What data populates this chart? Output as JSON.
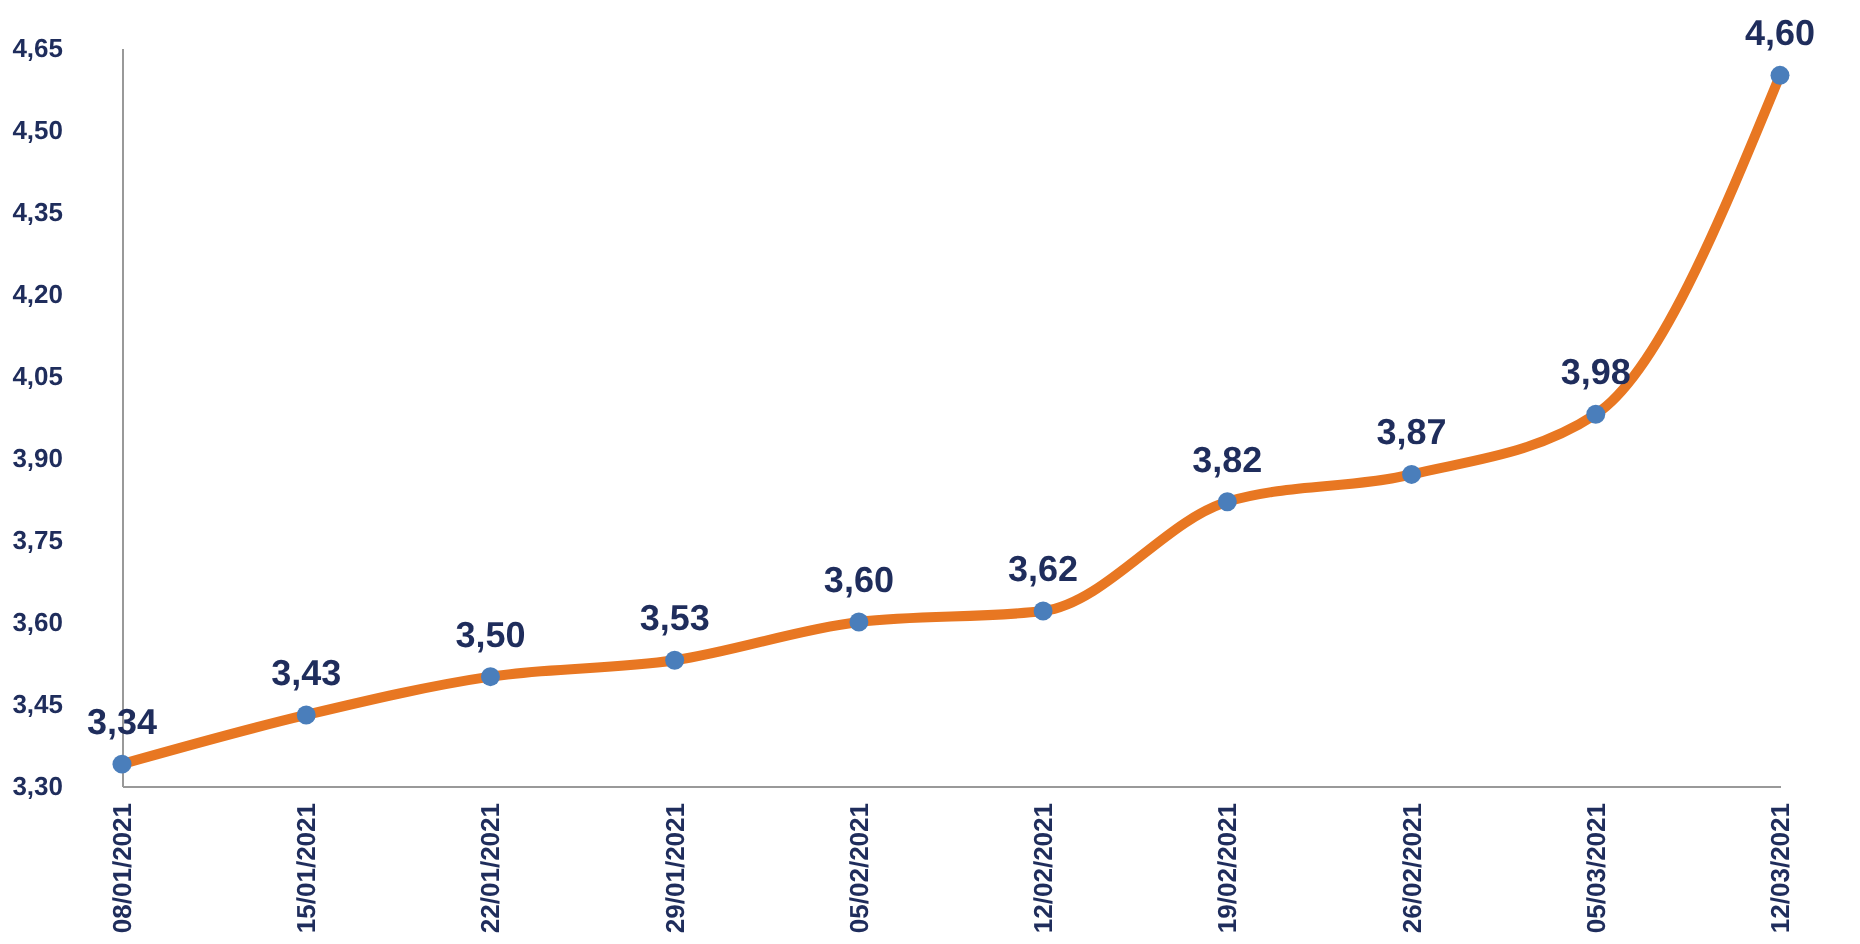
{
  "chart_data": {
    "type": "line",
    "categories": [
      "08/01/2021",
      "15/01/2021",
      "22/01/2021",
      "29/01/2021",
      "05/02/2021",
      "12/02/2021",
      "19/02/2021",
      "26/02/2021",
      "05/03/2021",
      "12/03/2021"
    ],
    "series": [
      {
        "color": "#e87722",
        "values": [
          3.34,
          3.43,
          3.5,
          3.53,
          3.6,
          3.62,
          3.82,
          3.87,
          3.98,
          4.6
        ],
        "value_labels": [
          "3,34",
          "3,43",
          "3,50",
          "3,53",
          "3,60",
          "3,62",
          "3,82",
          "3,87",
          "3,98",
          "4,60"
        ]
      }
    ],
    "ylim": [
      3.3,
      4.65
    ],
    "yticks": [
      {
        "value": 3.3,
        "label": "3,30"
      },
      {
        "value": 3.45,
        "label": "3,45"
      },
      {
        "value": 3.6,
        "label": "3,60"
      },
      {
        "value": 3.75,
        "label": "3,75"
      },
      {
        "value": 3.9,
        "label": "3,90"
      },
      {
        "value": 4.05,
        "label": "4,05"
      },
      {
        "value": 4.2,
        "label": "4,20"
      },
      {
        "value": 4.35,
        "label": "4,35"
      },
      {
        "value": 4.5,
        "label": "4,50"
      },
      {
        "value": 4.65,
        "label": "4,65"
      }
    ],
    "grid": false,
    "marker": "circle",
    "line_style": "solid",
    "legend": false
  }
}
